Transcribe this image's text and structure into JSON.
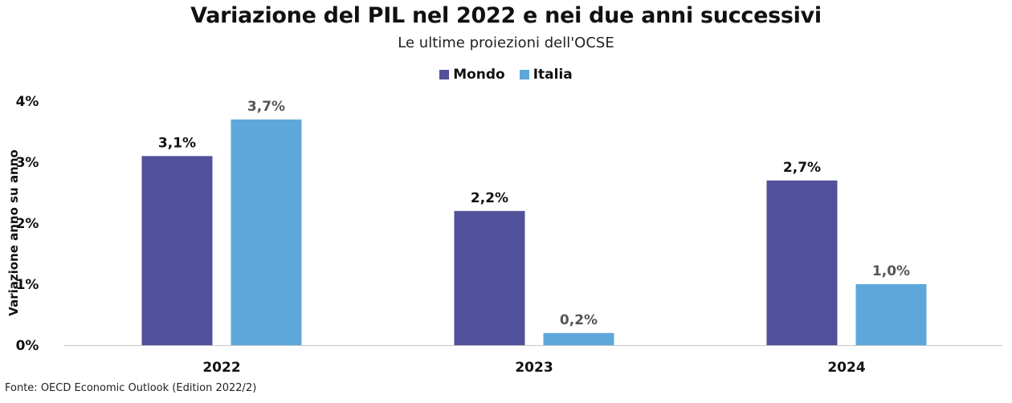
{
  "chart_data": {
    "type": "bar",
    "title": "Variazione del PIL nel 2022 e nei due anni successivi",
    "subtitle": "Le ultime proiezioni dell'OCSE",
    "categories": [
      "2022",
      "2023",
      "2024"
    ],
    "series": [
      {
        "name": "Mondo",
        "color": "#51509a",
        "values": [
          3.1,
          2.2,
          2.7
        ],
        "labels": [
          "3,1%",
          "2,2%",
          "2,7%"
        ],
        "label_color": "#111111"
      },
      {
        "name": "Italia",
        "color": "#5ea7da",
        "values": [
          3.7,
          0.2,
          1.0
        ],
        "labels": [
          "3,7%",
          "0,2%",
          "1,0%"
        ],
        "label_color": "#555555"
      }
    ],
    "xlabel": "",
    "ylabel": "Variazione anno su anno",
    "ylim": [
      0,
      4
    ],
    "yticks": [
      0,
      1,
      2,
      3,
      4
    ],
    "ytick_labels": [
      "0%",
      "1%",
      "2%",
      "3%",
      "4%"
    ],
    "grid": false,
    "legend_position": "top-center",
    "source": "Fonte: OECD Economic Outlook (Edition 2022/2)"
  }
}
